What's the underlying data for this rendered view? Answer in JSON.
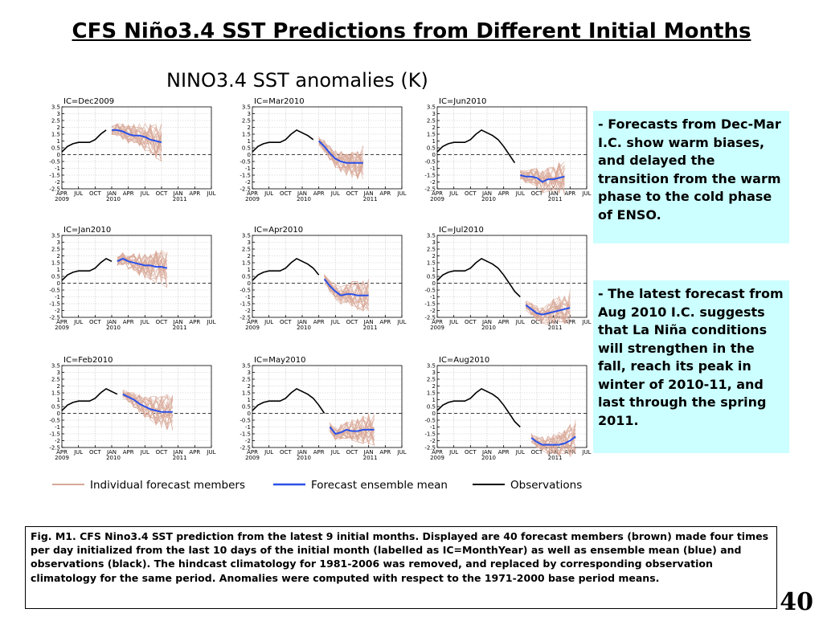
{
  "slide": {
    "title": "CFS Niño3.4 SST Predictions from Different Initial Months",
    "page_number": "40"
  },
  "callouts": [
    {
      "bullet": "- ",
      "text": "Forecasts from Dec-Mar I.C. show warm biases,  and delayed the transition from the warm phase to the cold phase of ENSO."
    },
    {
      "bullet": "- ",
      "text": "The latest forecast from Aug 2010 I.C. suggests  that La Niña conditions will strengthen in the fall, reach its peak in winter of 2010-11, and last through the spring 2011."
    }
  ],
  "caption": "Fig. M1. CFS Nino3.4 SST prediction from the latest 9 initial months. Displayed are 40 forecast members (brown) made four times per day initialized from the last 10 days of the initial month (labelled as IC=MonthYear) as well as ensemble mean (blue) and observations (black). The hindcast climatology for 1981-2006 was removed, and replaced by corresponding observation climatology for the same period. Anomalies were computed with respect to the 1971-2000 base period means.",
  "colors": {
    "members": "#d8a898",
    "ensemble_mean": "#2b50e8",
    "observations": "#000000",
    "callout_bg": "#ccffff"
  },
  "chart_data": {
    "type": "line",
    "title": "NINO3.4 SST anomalies (K)",
    "grid": true,
    "legend": [
      "Individual forecast members",
      "Forecast ensemble mean",
      "Observations"
    ],
    "legend_placement": "bottom",
    "ylim": [
      -2.5,
      3.5
    ],
    "yticks": [
      "3.5",
      "3",
      "2.5",
      "2",
      "1.5",
      "1",
      "0.5",
      "0",
      "-0.5",
      "-1",
      "-1.5",
      "-2",
      "-2.5"
    ],
    "observations": {
      "x": [
        "2009-04",
        "2009-05",
        "2009-06",
        "2009-07",
        "2009-08",
        "2009-09",
        "2009-10",
        "2009-11",
        "2009-12",
        "2010-01",
        "2010-02",
        "2010-03",
        "2010-04",
        "2010-05",
        "2010-06",
        "2010-07"
      ],
      "y": [
        0.2,
        0.6,
        0.8,
        0.9,
        0.9,
        0.9,
        1.1,
        1.5,
        1.8,
        1.6,
        1.4,
        1.1,
        0.6,
        0.0,
        -0.6,
        -1.0
      ]
    },
    "panels": [
      {
        "ic": "IC=Dec2009",
        "x_month_labels": [
          "APR",
          "JUL",
          "OCT",
          "JAN",
          "APR",
          "JUL",
          "OCT",
          "JAN",
          "APR",
          "JUL"
        ],
        "x_year_labels": [
          "2009",
          "2010",
          "2011"
        ],
        "ensemble_mean": {
          "x": [
            "2010-01",
            "2010-02",
            "2010-03",
            "2010-04",
            "2010-05",
            "2010-06",
            "2010-07",
            "2010-08",
            "2010-09",
            "2010-10"
          ],
          "y": [
            1.8,
            1.8,
            1.7,
            1.5,
            1.4,
            1.4,
            1.3,
            1.1,
            1.0,
            0.9
          ]
        }
      },
      {
        "ic": "IC=Mar2010",
        "x_month_labels": [
          "APR",
          "JUL",
          "OCT",
          "JAN",
          "APR",
          "JUL",
          "OCT",
          "JAN",
          "APR",
          "JUL"
        ],
        "x_year_labels": [
          "2009",
          "2010",
          "2011"
        ],
        "ensemble_mean": {
          "x": [
            "2010-04",
            "2010-05",
            "2010-06",
            "2010-07",
            "2010-08",
            "2010-09",
            "2010-10",
            "2010-11",
            "2010-12"
          ],
          "y": [
            1.0,
            0.6,
            0.1,
            -0.3,
            -0.5,
            -0.6,
            -0.6,
            -0.6,
            -0.6
          ]
        }
      },
      {
        "ic": "IC=Jun2010",
        "x_month_labels": [
          "APR",
          "JUL",
          "OCT",
          "JAN",
          "APR",
          "JUL",
          "OCT",
          "JAN",
          "APR",
          "JUL"
        ],
        "x_year_labels": [
          "2009",
          "2010",
          "2011"
        ],
        "ensemble_mean": {
          "x": [
            "2010-07",
            "2010-08",
            "2010-09",
            "2010-10",
            "2010-11",
            "2010-12",
            "2011-01",
            "2011-02",
            "2011-03"
          ],
          "y": [
            -1.5,
            -1.6,
            -1.6,
            -1.7,
            -2.0,
            -1.8,
            -1.8,
            -1.7,
            -1.6
          ]
        }
      },
      {
        "ic": "IC=Jan2010",
        "x_month_labels": [
          "APR",
          "JUL",
          "OCT",
          "JAN",
          "APR",
          "JUL",
          "OCT",
          "JAN",
          "APR",
          "JUL"
        ],
        "x_year_labels": [
          "2009",
          "2010",
          "2011"
        ],
        "ensemble_mean": {
          "x": [
            "2010-02",
            "2010-03",
            "2010-04",
            "2010-05",
            "2010-06",
            "2010-07",
            "2010-08",
            "2010-09",
            "2010-10",
            "2010-11"
          ],
          "y": [
            1.6,
            1.8,
            1.6,
            1.5,
            1.4,
            1.3,
            1.3,
            1.2,
            1.2,
            1.1
          ]
        }
      },
      {
        "ic": "IC=Apr2010",
        "x_month_labels": [
          "APR",
          "JUL",
          "OCT",
          "JAN",
          "APR",
          "JUL",
          "OCT",
          "JAN",
          "APR",
          "JUL"
        ],
        "x_year_labels": [
          "2009",
          "2010",
          "2011"
        ],
        "ensemble_mean": {
          "x": [
            "2010-05",
            "2010-06",
            "2010-07",
            "2010-08",
            "2010-09",
            "2010-10",
            "2010-11",
            "2010-12",
            "2011-01"
          ],
          "y": [
            0.3,
            -0.2,
            -0.6,
            -0.9,
            -0.8,
            -0.8,
            -0.9,
            -0.9,
            -0.9
          ]
        }
      },
      {
        "ic": "IC=Jul2010",
        "x_month_labels": [
          "APR",
          "JUL",
          "OCT",
          "JAN",
          "APR",
          "JUL",
          "OCT",
          "JAN",
          "APR",
          "JUL"
        ],
        "x_year_labels": [
          "2009",
          "2010",
          "2011"
        ],
        "ensemble_mean": {
          "x": [
            "2010-08",
            "2010-09",
            "2010-10",
            "2010-11",
            "2010-12",
            "2011-01",
            "2011-02",
            "2011-03",
            "2011-04"
          ],
          "y": [
            -1.6,
            -1.9,
            -2.2,
            -2.3,
            -2.2,
            -2.1,
            -2.0,
            -1.9,
            -1.8
          ]
        }
      },
      {
        "ic": "IC=Feb2010",
        "x_month_labels": [
          "APR",
          "JUL",
          "OCT",
          "JAN",
          "APR",
          "JUL",
          "OCT",
          "JAN",
          "APR",
          "JUL"
        ],
        "x_year_labels": [
          "2009",
          "2010",
          "2011"
        ],
        "ensemble_mean": {
          "x": [
            "2010-03",
            "2010-04",
            "2010-05",
            "2010-06",
            "2010-07",
            "2010-08",
            "2010-09",
            "2010-10",
            "2010-11",
            "2010-12"
          ],
          "y": [
            1.4,
            1.2,
            1.0,
            0.7,
            0.5,
            0.3,
            0.2,
            0.1,
            0.1,
            0.1
          ]
        }
      },
      {
        "ic": "IC=May2010",
        "x_month_labels": [
          "APR",
          "JUL",
          "OCT",
          "JAN",
          "APR",
          "JUL",
          "OCT",
          "JAN",
          "APR",
          "JUL"
        ],
        "x_year_labels": [
          "2009",
          "2010",
          "2011"
        ],
        "ensemble_mean": {
          "x": [
            "2010-06",
            "2010-07",
            "2010-08",
            "2010-09",
            "2010-10",
            "2010-11",
            "2010-12",
            "2011-01",
            "2011-02"
          ],
          "y": [
            -1.0,
            -1.5,
            -1.4,
            -1.2,
            -1.3,
            -1.3,
            -1.2,
            -1.2,
            -1.2
          ]
        }
      },
      {
        "ic": "IC=Aug2010",
        "x_month_labels": [
          "APR",
          "JUL",
          "OCT",
          "JAN",
          "APR",
          "JUL",
          "OCT",
          "JAN",
          "APR",
          "JUL"
        ],
        "x_year_labels": [
          "2009",
          "2010",
          "2011"
        ],
        "ensemble_mean": {
          "x": [
            "2010-09",
            "2010-10",
            "2010-11",
            "2010-12",
            "2011-01",
            "2011-02",
            "2011-03",
            "2011-04",
            "2011-05"
          ],
          "y": [
            -1.8,
            -2.1,
            -2.3,
            -2.3,
            -2.3,
            -2.3,
            -2.2,
            -2.0,
            -1.7
          ]
        }
      }
    ]
  }
}
